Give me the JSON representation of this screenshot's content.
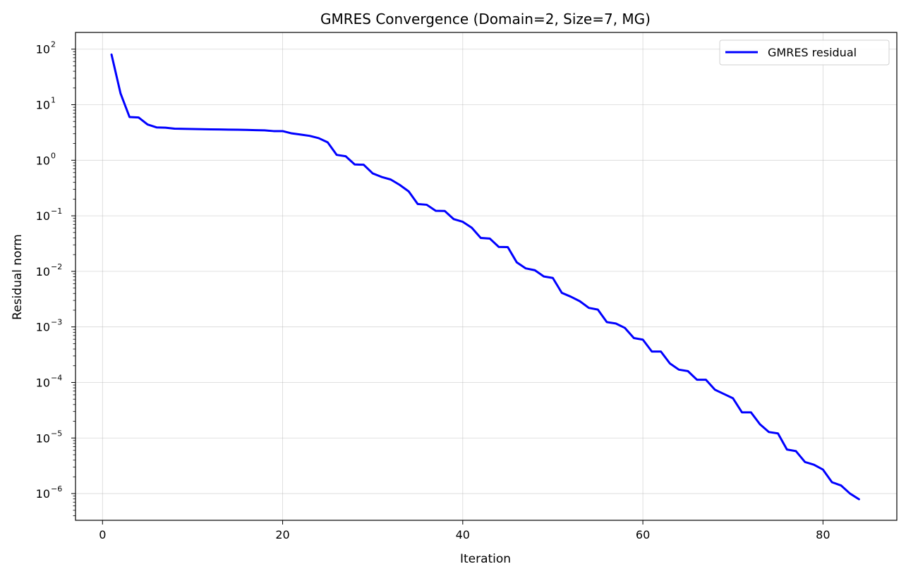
{
  "chart_data": {
    "type": "line",
    "title": "GMRES Convergence (Domain=2, Size=7, MG)",
    "xlabel": "Iteration",
    "ylabel": "Residual norm",
    "xlim": [
      -3,
      88.2
    ],
    "ylim": [
      3.3e-07,
      200
    ],
    "yscale": "log",
    "grid": true,
    "legend_position": "top-right",
    "xticks": [
      0,
      20,
      40,
      60,
      80
    ],
    "yticks": [
      {
        "value": 100.0,
        "base": "10",
        "exp": "2"
      },
      {
        "value": 10.0,
        "base": "10",
        "exp": "1"
      },
      {
        "value": 1.0,
        "base": "10",
        "exp": "0"
      },
      {
        "value": 0.1,
        "base": "10",
        "exp": "−1"
      },
      {
        "value": 0.01,
        "base": "10",
        "exp": "−2"
      },
      {
        "value": 0.001,
        "base": "10",
        "exp": "−3"
      },
      {
        "value": 0.0001,
        "base": "10",
        "exp": "−4"
      },
      {
        "value": 1e-05,
        "base": "10",
        "exp": "−5"
      },
      {
        "value": 1e-06,
        "base": "10",
        "exp": "−6"
      }
    ],
    "series": [
      {
        "name": "GMRES residual",
        "color": "#0000ff",
        "x": [
          1,
          2,
          3,
          4,
          5,
          6,
          7,
          8,
          9,
          10,
          11,
          12,
          13,
          14,
          15,
          16,
          17,
          18,
          19,
          20,
          21,
          22,
          23,
          24,
          25,
          26,
          27,
          28,
          29,
          30,
          31,
          32,
          33,
          34,
          35,
          36,
          37,
          38,
          39,
          40,
          41,
          42,
          43,
          44,
          45,
          46,
          47,
          48,
          49,
          50,
          51,
          52,
          53,
          54,
          55,
          56,
          57,
          58,
          59,
          60,
          61,
          62,
          63,
          64,
          65,
          66,
          67,
          68,
          69,
          70,
          71,
          72,
          73,
          74,
          75,
          76,
          77,
          78,
          79,
          80,
          81,
          82,
          83,
          84
        ],
        "y": [
          80,
          16,
          6.0,
          5.9,
          4.4,
          3.9,
          3.85,
          3.7,
          3.68,
          3.65,
          3.62,
          3.6,
          3.58,
          3.56,
          3.54,
          3.52,
          3.48,
          3.45,
          3.35,
          3.35,
          3.05,
          2.9,
          2.75,
          2.5,
          2.1,
          1.25,
          1.18,
          0.84,
          0.83,
          0.58,
          0.5,
          0.45,
          0.36,
          0.275,
          0.163,
          0.158,
          0.123,
          0.122,
          0.087,
          0.078,
          0.061,
          0.04,
          0.039,
          0.0275,
          0.0273,
          0.0145,
          0.0113,
          0.0105,
          0.0081,
          0.0076,
          0.0041,
          0.0035,
          0.0029,
          0.0022,
          0.00205,
          0.00122,
          0.00115,
          0.00096,
          0.00063,
          0.00059,
          0.00036,
          0.00036,
          0.00022,
          0.00017,
          0.00016,
          0.000112,
          0.000112,
          7.4e-05,
          6.2e-05,
          5.2e-05,
          2.9e-05,
          2.9e-05,
          1.77e-05,
          1.28e-05,
          1.21e-05,
          6.2e-06,
          5.8e-06,
          3.7e-06,
          3.3e-06,
          2.7e-06,
          1.6e-06,
          1.4e-06,
          1e-06,
          7.9e-07
        ]
      }
    ]
  }
}
